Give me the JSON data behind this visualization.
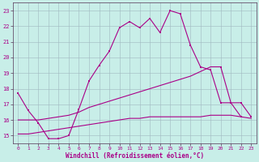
{
  "xlabel": "Windchill (Refroidissement éolien,°C)",
  "background_color": "#c8eee8",
  "grid_color": "#a0b8c0",
  "line_color": "#aa0088",
  "x_main": [
    0,
    1,
    2,
    3,
    4,
    5,
    6,
    7,
    8,
    9,
    10,
    11,
    12,
    13,
    14,
    15,
    16,
    17,
    18,
    19,
    20,
    21,
    22,
    23
  ],
  "y_main": [
    17.7,
    16.6,
    15.8,
    14.8,
    14.8,
    15.0,
    16.7,
    18.5,
    19.5,
    20.4,
    21.9,
    22.3,
    21.9,
    22.5,
    21.6,
    23.0,
    22.8,
    20.8,
    19.4,
    19.2,
    17.1,
    17.1,
    16.2,
    null
  ],
  "x_upper": [
    0,
    1,
    2,
    3,
    4,
    5,
    6,
    7,
    8,
    9,
    10,
    11,
    12,
    13,
    14,
    15,
    16,
    17,
    18,
    19,
    20,
    21,
    22,
    23
  ],
  "y_upper": [
    16.0,
    16.0,
    16.0,
    16.1,
    16.2,
    16.3,
    16.5,
    16.8,
    17.0,
    17.2,
    17.4,
    17.6,
    17.8,
    18.0,
    18.2,
    18.4,
    18.6,
    18.8,
    19.1,
    19.4,
    19.4,
    17.1,
    17.1,
    16.2
  ],
  "x_lower": [
    0,
    1,
    2,
    3,
    4,
    5,
    6,
    7,
    8,
    9,
    10,
    11,
    12,
    13,
    14,
    15,
    16,
    17,
    18,
    19,
    20,
    21,
    22,
    23
  ],
  "y_lower": [
    15.1,
    15.1,
    15.2,
    15.3,
    15.4,
    15.5,
    15.6,
    15.7,
    15.8,
    15.9,
    16.0,
    16.1,
    16.1,
    16.2,
    16.2,
    16.2,
    16.2,
    16.2,
    16.2,
    16.3,
    16.3,
    16.3,
    16.2,
    16.1
  ],
  "ylim": [
    14.5,
    23.5
  ],
  "yticks": [
    15,
    16,
    17,
    18,
    19,
    20,
    21,
    22,
    23
  ],
  "xlim": [
    -0.5,
    23.5
  ],
  "xticks": [
    0,
    1,
    2,
    3,
    4,
    5,
    6,
    7,
    8,
    9,
    10,
    11,
    12,
    13,
    14,
    15,
    16,
    17,
    18,
    19,
    20,
    21,
    22,
    23
  ],
  "figsize": [
    3.2,
    2.0
  ],
  "dpi": 100
}
